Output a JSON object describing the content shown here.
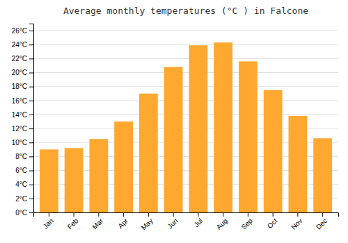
{
  "chart_data": {
    "type": "bar",
    "title": "Average monthly temperatures (°C ) in Falcone",
    "categories": [
      "Jan",
      "Feb",
      "Mar",
      "Apr",
      "May",
      "Jun",
      "Jul",
      "Aug",
      "Sep",
      "Oct",
      "Nov",
      "Dec"
    ],
    "values": [
      9.0,
      9.2,
      10.5,
      13.0,
      17.0,
      20.8,
      23.9,
      24.3,
      21.6,
      17.5,
      13.8,
      10.6
    ],
    "color": "#FFA830",
    "ylim": [
      0,
      27
    ],
    "yticks": [
      {
        "value": 0,
        "label": "0°C"
      },
      {
        "value": 2,
        "label": "2°C"
      },
      {
        "value": 4,
        "label": "4°C"
      },
      {
        "value": 6,
        "label": "6°C"
      },
      {
        "value": 8,
        "label": "8°C"
      },
      {
        "value": 10,
        "label": "10°C"
      },
      {
        "value": 12,
        "label": "12°C"
      },
      {
        "value": 14,
        "label": "14°C"
      },
      {
        "value": 16,
        "label": "16°C"
      },
      {
        "value": 18,
        "label": "18°C"
      },
      {
        "value": 20,
        "label": "20°C"
      },
      {
        "value": 22,
        "label": "22°C"
      },
      {
        "value": 24,
        "label": "24°C"
      },
      {
        "value": 26,
        "label": "26°C"
      }
    ],
    "grid": true
  }
}
